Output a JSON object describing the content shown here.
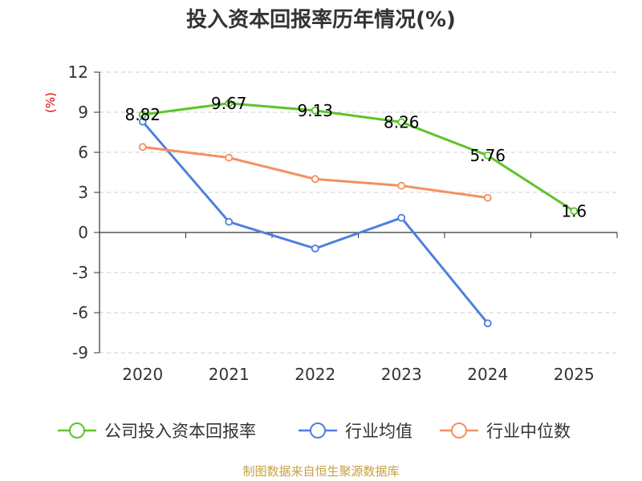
{
  "title": "投入资本回报率历年情况(%)",
  "unit_label": "(%)",
  "source": "制图数据来自恒生聚源数据库",
  "colors": {
    "company": "#5ec42a",
    "industry_avg": "#4f7fde",
    "industry_median": "#f4905f",
    "axis": "#333333",
    "grid": "#cccccc",
    "unit": "#e60000",
    "source": "#c8a040"
  },
  "chart_data": {
    "type": "line",
    "categories": [
      "2020",
      "2021",
      "2022",
      "2023",
      "2024",
      "2025"
    ],
    "yticks": [
      "12",
      "9",
      "6",
      "3",
      "0",
      "-3",
      "-6",
      "-9"
    ],
    "ylim": [
      -9,
      12
    ],
    "grid": true,
    "legend_position": "bottom",
    "series": [
      {
        "name": "公司投入资本回报率",
        "color_key": "company",
        "values": [
          8.82,
          9.67,
          9.13,
          8.26,
          5.76,
          1.6
        ],
        "labels": [
          "8.82",
          "9.67",
          "9.13",
          "8.26",
          "5.76",
          "1.6"
        ]
      },
      {
        "name": "行业均值",
        "color_key": "industry_avg",
        "values": [
          8.3,
          0.8,
          -1.2,
          1.1,
          -6.8,
          null
        ],
        "labels": []
      },
      {
        "name": "行业中位数",
        "color_key": "industry_median",
        "values": [
          6.4,
          5.6,
          4.0,
          3.5,
          2.6,
          null
        ],
        "labels": []
      }
    ]
  }
}
